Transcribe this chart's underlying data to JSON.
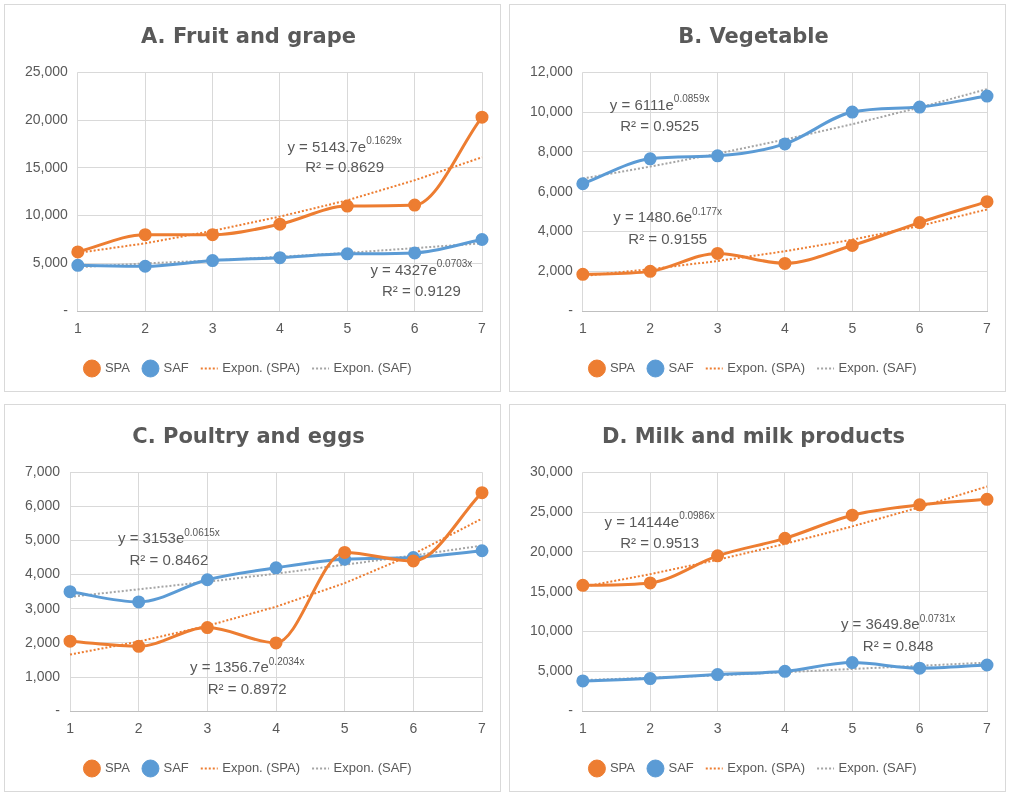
{
  "chart_data": [
    {
      "type": "line",
      "title": "A. Fruit and grape",
      "categories": [
        "1",
        "2",
        "3",
        "4",
        "5",
        "6",
        "7"
      ],
      "series": [
        {
          "name": "SPA",
          "color": "#ed7d31",
          "marker": "circle",
          "values": [
            6200,
            8000,
            8000,
            9100,
            11000,
            11100,
            20300
          ]
        },
        {
          "name": "SAF",
          "color": "#5b9bd5",
          "marker": "circle",
          "values": [
            4800,
            4700,
            5300,
            5600,
            6000,
            6100,
            7500
          ]
        },
        {
          "name": "Expon. (SPA)",
          "color": "#ed7d31",
          "marker": "none",
          "line_style": "dotted",
          "values": [
            6100,
            7100,
            8400,
            9900,
            11600,
            13700,
            16100
          ]
        },
        {
          "name": "Expon. (SAF)",
          "color": "#a5a5a5",
          "marker": "none",
          "line_style": "dotted",
          "values": [
            4600,
            5000,
            5300,
            5700,
            6100,
            6600,
            7100
          ]
        }
      ],
      "ylim": [
        0,
        25000
      ],
      "yticks": [
        {
          "value": 0,
          "label": "-"
        },
        {
          "value": 5000,
          "label": "5,000"
        },
        {
          "value": 10000,
          "label": "10,000"
        },
        {
          "value": 15000,
          "label": "15,000"
        },
        {
          "value": 20000,
          "label": "20,000"
        },
        {
          "value": 25000,
          "label": "25,000"
        }
      ],
      "grid": true,
      "legend": "bottom",
      "annotations": [
        "y = 5143.7e$^{0.1629x}$",
        "R² = 0.8629",
        "y = 4327e$^{0.0703x}$",
        "R² = 0.9129"
      ]
    },
    {
      "type": "line",
      "title": "B. Vegetable",
      "categories": [
        "1",
        "2",
        "3",
        "4",
        "5",
        "6",
        "7"
      ],
      "series": [
        {
          "name": "SPA",
          "color": "#ed7d31",
          "marker": "circle",
          "values": [
            1850,
            2000,
            2900,
            2400,
            3300,
            4450,
            5500
          ]
        },
        {
          "name": "SAF",
          "color": "#5b9bd5",
          "marker": "circle",
          "values": [
            6400,
            7650,
            7800,
            8400,
            10000,
            10250,
            10800
          ]
        },
        {
          "name": "Expon. (SPA)",
          "color": "#ed7d31",
          "marker": "none",
          "line_style": "dotted",
          "values": [
            1770,
            2110,
            2520,
            3010,
            3590,
            4280,
            5110
          ]
        },
        {
          "name": "Expon. (SAF)",
          "color": "#a5a5a5",
          "marker": "none",
          "line_style": "dotted",
          "values": [
            6660,
            7260,
            7910,
            8620,
            9390,
            10230,
            11150
          ]
        }
      ],
      "ylim": [
        0,
        12000
      ],
      "yticks": [
        {
          "value": 0,
          "label": "-"
        },
        {
          "value": 2000,
          "label": "2,000"
        },
        {
          "value": 4000,
          "label": "4,000"
        },
        {
          "value": 6000,
          "label": "6,000"
        },
        {
          "value": 8000,
          "label": "8,000"
        },
        {
          "value": 10000,
          "label": "10,000"
        },
        {
          "value": 12000,
          "label": "12,000"
        }
      ],
      "grid": true,
      "legend": "bottom",
      "annotations": [
        "y = 6111e$^{0.0859x}$",
        "R² = 0.9525",
        "y = 1480.6e$^{0.177x}$",
        "R² = 0.9155"
      ]
    },
    {
      "type": "line",
      "title": "C. Poultry and eggs",
      "categories": [
        "1",
        "2",
        "3",
        "4",
        "5",
        "6",
        "7"
      ],
      "series": [
        {
          "name": "SPA",
          "color": "#ed7d31",
          "marker": "circle",
          "values": [
            2050,
            1900,
            2450,
            2000,
            4650,
            4400,
            6400
          ]
        },
        {
          "name": "SAF",
          "color": "#5b9bd5",
          "marker": "circle",
          "values": [
            3500,
            3200,
            3850,
            4200,
            4450,
            4500,
            4700
          ]
        },
        {
          "name": "Expon. (SPA)",
          "color": "#ed7d31",
          "marker": "none",
          "line_style": "dotted",
          "values": [
            1660,
            2040,
            2500,
            3060,
            3750,
            4600,
            5640
          ]
        },
        {
          "name": "Expon. (SAF)",
          "color": "#a5a5a5",
          "marker": "none",
          "line_style": "dotted",
          "values": [
            3350,
            3570,
            3790,
            4030,
            4290,
            4560,
            4850
          ]
        }
      ],
      "ylim": [
        0,
        7000
      ],
      "yticks": [
        {
          "value": 0,
          "label": "-"
        },
        {
          "value": 1000,
          "label": "1,000"
        },
        {
          "value": 2000,
          "label": "2,000"
        },
        {
          "value": 3000,
          "label": "3,000"
        },
        {
          "value": 4000,
          "label": "4,000"
        },
        {
          "value": 5000,
          "label": "5,000"
        },
        {
          "value": 6000,
          "label": "6,000"
        },
        {
          "value": 7000,
          "label": "7,000"
        }
      ],
      "grid": true,
      "legend": "bottom",
      "annotations": [
        "y = 3153e$^{0.0615x}$",
        "R² = 0.8462",
        "y = 1356.7e$^{0.2034x}$",
        "R² = 0.8972"
      ]
    },
    {
      "type": "line",
      "title": "D. Milk and milk products",
      "categories": [
        "1",
        "2",
        "3",
        "4",
        "5",
        "6",
        "7"
      ],
      "series": [
        {
          "name": "SPA",
          "color": "#ed7d31",
          "marker": "circle",
          "values": [
            15800,
            16100,
            19500,
            21700,
            24600,
            25900,
            26600
          ]
        },
        {
          "name": "SAF",
          "color": "#5b9bd5",
          "marker": "circle",
          "values": [
            3800,
            4100,
            4600,
            5000,
            6100,
            5400,
            5800
          ]
        },
        {
          "name": "Expon. (SPA)",
          "color": "#ed7d31",
          "marker": "none",
          "line_style": "dotted",
          "values": [
            15600,
            17200,
            19000,
            21000,
            23200,
            25600,
            28200
          ]
        },
        {
          "name": "Expon. (SAF)",
          "color": "#a5a5a5",
          "marker": "none",
          "line_style": "dotted",
          "values": [
            3900,
            4200,
            4500,
            4900,
            5300,
            5700,
            6100
          ]
        }
      ],
      "ylim": [
        0,
        30000
      ],
      "yticks": [
        {
          "value": 0,
          "label": "-"
        },
        {
          "value": 5000,
          "label": "5,000"
        },
        {
          "value": 10000,
          "label": "10,000"
        },
        {
          "value": 15000,
          "label": "15,000"
        },
        {
          "value": 20000,
          "label": "20,000"
        },
        {
          "value": 25000,
          "label": "25,000"
        },
        {
          "value": 30000,
          "label": "30,000"
        }
      ],
      "grid": true,
      "legend": "bottom",
      "annotations": [
        "y = 14144e$^{0.0986x}$",
        "R² = 0.9513",
        "y = 3649.8e$^{0.0731x}$",
        "R² = 0.848"
      ]
    }
  ]
}
